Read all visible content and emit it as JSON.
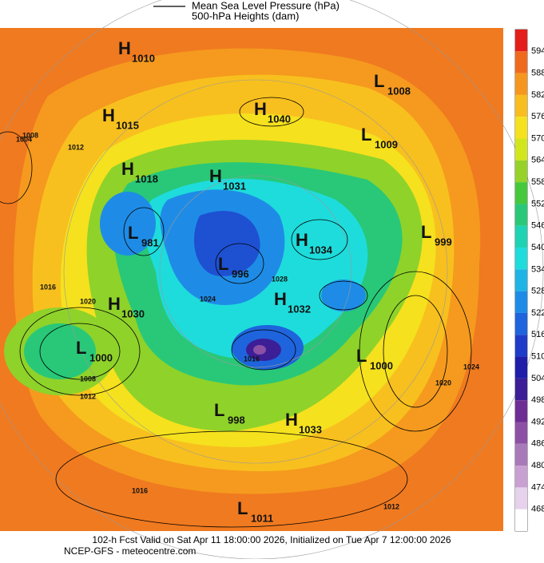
{
  "legend": {
    "pressure": "Mean Sea Level Pressure (hPa)",
    "heights": "500-hPa Heights (dam)"
  },
  "colorbar": {
    "levels": [
      594,
      588,
      582,
      576,
      570,
      564,
      558,
      552,
      546,
      540,
      534,
      528,
      522,
      516,
      510,
      504,
      498,
      492,
      486,
      480,
      474,
      468
    ],
    "colors": [
      "#e41e1a",
      "#f06a1e",
      "#f5961e",
      "#f8bd1e",
      "#f5e11e",
      "#d2e61e",
      "#96d22a",
      "#46c83c",
      "#28c878",
      "#1ed2b4",
      "#1edcdc",
      "#1eb4e6",
      "#1e8ce6",
      "#1e64dc",
      "#1e3cc8",
      "#1e1eaa",
      "#3c1e96",
      "#6e2d94",
      "#8c50a5",
      "#a87ab9",
      "#c8a0d2",
      "#e6d2ec"
    ]
  },
  "centers": [
    {
      "type": "H",
      "value": 1010
    },
    {
      "type": "L",
      "value": 1008
    },
    {
      "type": "H",
      "value": 1015
    },
    {
      "type": "H",
      "value": 1040
    },
    {
      "type": "L",
      "value": 1009
    },
    {
      "type": "H",
      "value": 1018
    },
    {
      "type": "H",
      "value": 1031
    },
    {
      "type": "L",
      "value": 981
    },
    {
      "type": "H",
      "value": 1034
    },
    {
      "type": "L",
      "value": 999
    },
    {
      "type": "L",
      "value": 996
    },
    {
      "type": "H",
      "value": 1030
    },
    {
      "type": "H",
      "value": 1032
    },
    {
      "type": "L",
      "value": 1000
    },
    {
      "type": "L",
      "value": 1000
    },
    {
      "type": "L",
      "value": 998
    },
    {
      "type": "H",
      "value": 1033
    },
    {
      "type": "L",
      "value": 1011
    }
  ],
  "isobars": [
    1004,
    1008,
    1012,
    1016,
    1020,
    1024,
    1028,
    1008,
    1012,
    1016,
    1020,
    1024,
    1016,
    1012
  ],
  "footer": {
    "line1": "102-h Fcst Valid on Sat Apr 11 18:00:00 2026, Initialized on Tue Apr  7 12:00:00 2026",
    "line2": "NCEP-GFS - meteocentre.com"
  }
}
